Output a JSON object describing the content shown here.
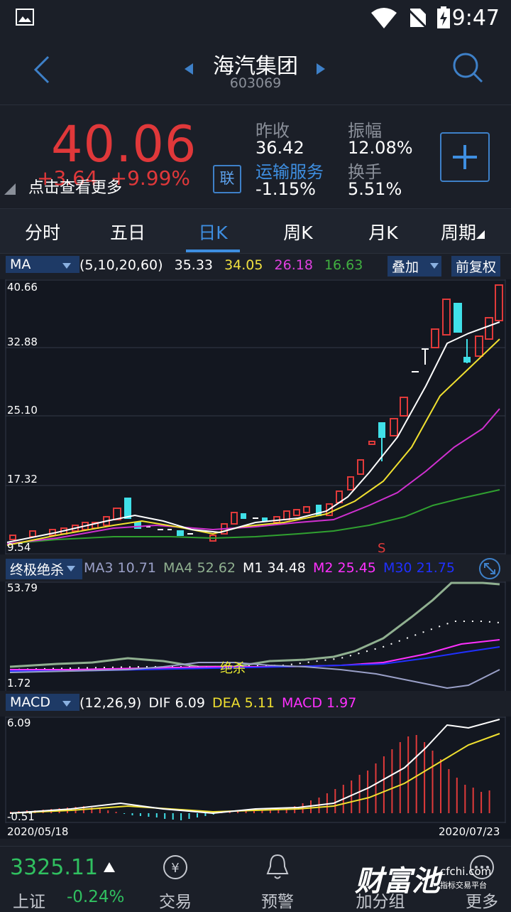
{
  "status_bar": {
    "time": "9:47"
  },
  "header": {
    "title": "海汽集团",
    "code": "603069"
  },
  "quote": {
    "price": "40.06",
    "change": "+3.64",
    "change_pct": "+9.99%",
    "more_label": "点击查看更多",
    "lian_label": "联",
    "prev_close_label": "昨收",
    "prev_close": "36.42",
    "sector": "运输服务",
    "sector_change": "-1.15%",
    "amplitude_label": "振幅",
    "amplitude": "12.08%",
    "turnover_label": "换手",
    "turnover": "5.51%"
  },
  "tabs": [
    "分时",
    "五日",
    "日K",
    "周K",
    "月K",
    "周期"
  ],
  "active_tab": 2,
  "ma_bar": {
    "selector": "MA",
    "params": "(5,10,20,60)",
    "ma5": "35.33",
    "ma10": "34.05",
    "ma20": "26.18",
    "ma60": "16.63",
    "overlay_label": "叠加",
    "adjust_label": "前复权",
    "colors": {
      "ma5": "#ffffff",
      "ma10": "#f0e040",
      "ma20": "#e040e0",
      "ma60": "#40b040"
    }
  },
  "kline": {
    "y_ticks": [
      "40.66",
      "32.88",
      "25.10",
      "17.32",
      "9.54"
    ],
    "signal": "S"
  },
  "indicator2": {
    "selector": "终极绝杀",
    "ma3_label": "MA3",
    "ma3": "10.71",
    "ma4_label": "MA4",
    "ma4": "52.62",
    "m1_label": "M1",
    "m1": "34.48",
    "m2_label": "M2",
    "m2": "25.45",
    "m30_label": "M30",
    "m30": "21.75",
    "y_top": "53.79",
    "y_bottom": "1.72",
    "signal": "绝杀"
  },
  "macd": {
    "selector": "MACD",
    "params": "(12,26,9)",
    "dif_label": "DIF",
    "dif": "6.09",
    "dea_label": "DEA",
    "dea": "5.11",
    "macd_label": "MACD",
    "macd": "1.97",
    "y_top": "6.09",
    "y_bottom": "-0.51",
    "date_start": "2020/05/18",
    "date_end": "2020/07/23"
  },
  "bottom_bar": {
    "index_value": "3325.11",
    "index_name": "上证",
    "index_change": "-0.24%",
    "nav": [
      "交易",
      "预警",
      "加分组",
      "更多"
    ],
    "watermark": "财富池",
    "watermark_site": "cfchi.com",
    "watermark_sub": "指标交易平台"
  }
}
